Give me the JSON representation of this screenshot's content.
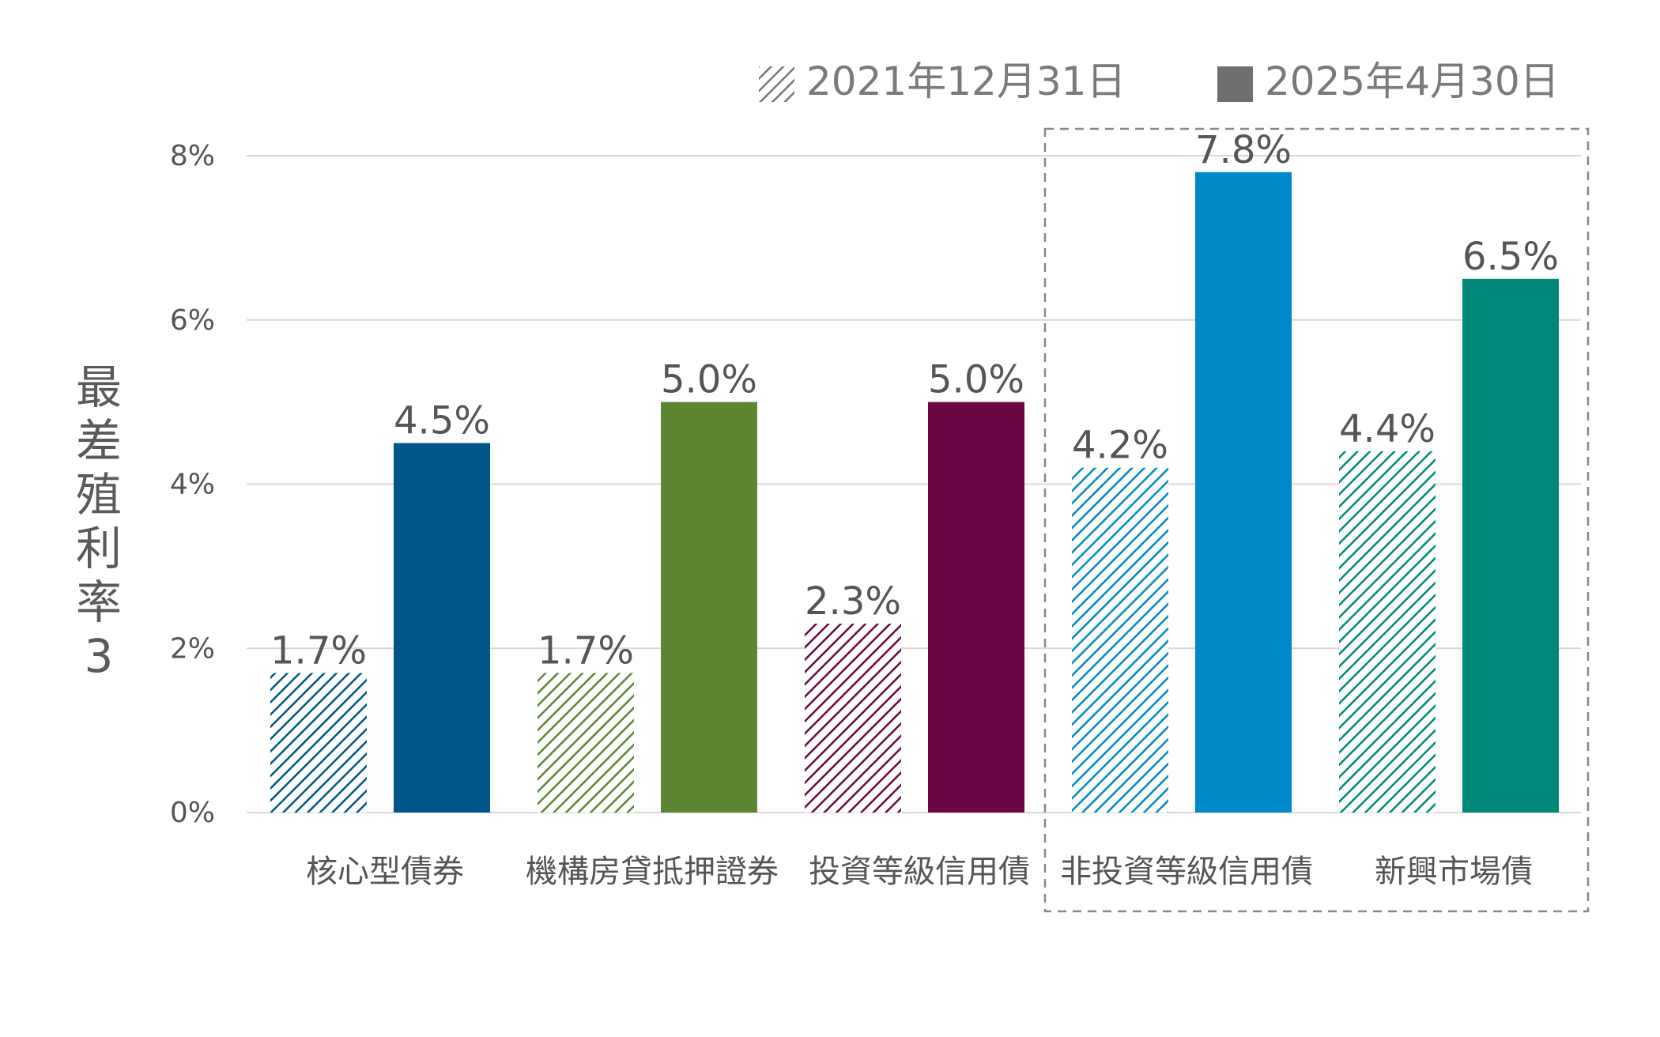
{
  "chart_data": {
    "type": "bar",
    "ylabel": "最差殖利率3",
    "ylim": [
      0,
      8
    ],
    "yticks": [
      0,
      2,
      4,
      6,
      8
    ],
    "ytick_labels": [
      "0%",
      "2%",
      "4%",
      "6%",
      "8%"
    ],
    "grid": true,
    "categories": [
      "核心型債券",
      "機構房貸抵押證券",
      "投資等級信用債",
      "非投資等級信用債",
      "新興市場債"
    ],
    "series": [
      {
        "name": "2021年12月31日",
        "style": "hatched",
        "values": [
          1.7,
          1.7,
          2.3,
          4.2,
          4.4
        ],
        "labels": [
          "1.7%",
          "1.7%",
          "2.3%",
          "4.2%",
          "4.4%"
        ]
      },
      {
        "name": "2025年4月30日",
        "style": "solid",
        "values": [
          4.5,
          5.0,
          5.0,
          7.8,
          6.5
        ],
        "labels": [
          "4.5%",
          "5.0%",
          "5.0%",
          "7.8%",
          "6.5%"
        ]
      }
    ],
    "category_colors": [
      "#00558a",
      "#5e8532",
      "#6b0743",
      "#0089c9",
      "#00897a"
    ],
    "legend": {
      "placement": "top-right",
      "hatched_swatch_color": "#777777",
      "solid_swatch_color": "#707070"
    },
    "highlight_box": {
      "categories": [
        "非投資等級信用債",
        "新興市場債"
      ],
      "color": "#888888"
    },
    "colors": {
      "grid": "#d9d9d9",
      "text": "#555555"
    }
  }
}
